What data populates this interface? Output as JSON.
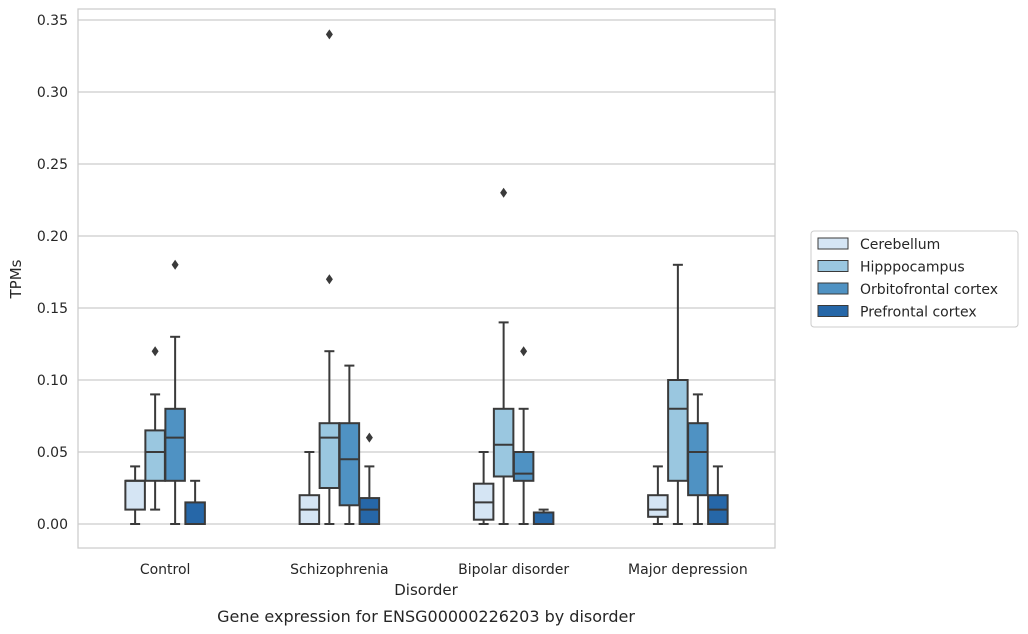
{
  "chart_data": {
    "type": "box",
    "caption": "Gene expression for ENSG00000226203 by disorder",
    "xlabel": "Disorder",
    "ylabel": "TPMs",
    "ylim": [
      -0.017,
      0.358
    ],
    "yticks": [
      "0.00",
      "0.05",
      "0.10",
      "0.15",
      "0.20",
      "0.25",
      "0.30",
      "0.35"
    ],
    "grid": true,
    "legend_position": "right",
    "categories": [
      "Control",
      "Schizophrenia",
      "Bipolar disorder",
      "Major depression"
    ],
    "series": [
      {
        "name": "Cerebellum",
        "color": "#d5e5f4",
        "boxes": [
          {
            "whislo": 0.0,
            "q1": 0.01,
            "med": 0.03,
            "q3": 0.03,
            "whishi": 0.04,
            "fliers": []
          },
          {
            "whislo": 0.0,
            "q1": 0.0,
            "med": 0.01,
            "q3": 0.02,
            "whishi": 0.05,
            "fliers": []
          },
          {
            "whislo": 0.0,
            "q1": 0.003,
            "med": 0.015,
            "q3": 0.028,
            "whishi": 0.05,
            "fliers": []
          },
          {
            "whislo": 0.0,
            "q1": 0.005,
            "med": 0.01,
            "q3": 0.02,
            "whishi": 0.04,
            "fliers": []
          }
        ]
      },
      {
        "name": "Hipppocampus",
        "color": "#9ac7e0",
        "boxes": [
          {
            "whislo": 0.01,
            "q1": 0.03,
            "med": 0.05,
            "q3": 0.065,
            "whishi": 0.09,
            "fliers": [
              0.12
            ]
          },
          {
            "whislo": 0.0,
            "q1": 0.025,
            "med": 0.06,
            "q3": 0.07,
            "whishi": 0.12,
            "fliers": [
              0.17,
              0.34
            ]
          },
          {
            "whislo": 0.0,
            "q1": 0.033,
            "med": 0.055,
            "q3": 0.08,
            "whishi": 0.14,
            "fliers": [
              0.23
            ]
          },
          {
            "whislo": 0.0,
            "q1": 0.03,
            "med": 0.08,
            "q3": 0.1,
            "whishi": 0.18,
            "fliers": []
          }
        ]
      },
      {
        "name": "Orbitofrontal cortex",
        "color": "#4f92c3",
        "boxes": [
          {
            "whislo": 0.0,
            "q1": 0.03,
            "med": 0.06,
            "q3": 0.08,
            "whishi": 0.13,
            "fliers": [
              0.18
            ]
          },
          {
            "whislo": 0.0,
            "q1": 0.013,
            "med": 0.045,
            "q3": 0.07,
            "whishi": 0.11,
            "fliers": []
          },
          {
            "whislo": 0.0,
            "q1": 0.03,
            "med": 0.035,
            "q3": 0.05,
            "whishi": 0.08,
            "fliers": [
              0.12
            ]
          },
          {
            "whislo": 0.0,
            "q1": 0.02,
            "med": 0.05,
            "q3": 0.07,
            "whishi": 0.09,
            "fliers": []
          }
        ]
      },
      {
        "name": "Prefrontal cortex",
        "color": "#2667a8",
        "boxes": [
          {
            "whislo": 0.0,
            "q1": 0.0,
            "med": 0.0,
            "q3": 0.015,
            "whishi": 0.03,
            "fliers": []
          },
          {
            "whislo": 0.0,
            "q1": 0.0,
            "med": 0.01,
            "q3": 0.018,
            "whishi": 0.04,
            "fliers": [
              0.06
            ]
          },
          {
            "whislo": 0.0,
            "q1": 0.0,
            "med": 0.0,
            "q3": 0.008,
            "whishi": 0.01,
            "fliers": []
          },
          {
            "whislo": 0.0,
            "q1": 0.0,
            "med": 0.01,
            "q3": 0.02,
            "whishi": 0.04,
            "fliers": []
          }
        ]
      }
    ]
  }
}
